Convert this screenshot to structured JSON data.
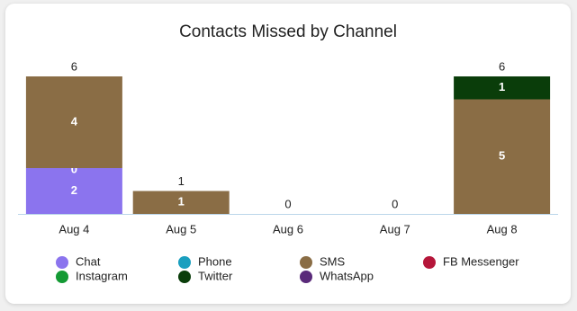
{
  "chart_data": {
    "type": "stacked_bar",
    "title": "Contacts Missed by Channel",
    "categories": [
      "Aug 4",
      "Aug 5",
      "Aug 6",
      "Aug 7",
      "Aug 8"
    ],
    "series": [
      {
        "name": "Chat",
        "color": "#8b74ee",
        "values": [
          2,
          null,
          null,
          null,
          0
        ]
      },
      {
        "name": "Phone",
        "color": "#1a9fbf",
        "values": [
          0,
          null,
          null,
          null,
          null
        ]
      },
      {
        "name": "SMS",
        "color": "#8a6d45",
        "values": [
          4,
          1,
          null,
          null,
          5
        ]
      },
      {
        "name": "FB Messenger",
        "color": "#b5163a",
        "values": [
          null,
          null,
          null,
          null,
          null
        ]
      },
      {
        "name": "Instagram",
        "color": "#149a34",
        "values": [
          null,
          null,
          null,
          null,
          null
        ]
      },
      {
        "name": "Twitter",
        "color": "#0a3d0a",
        "values": [
          null,
          null,
          null,
          null,
          1
        ]
      },
      {
        "name": "WhatsApp",
        "color": "#5a2a7a",
        "values": [
          null,
          null,
          null,
          null,
          null
        ]
      }
    ],
    "totals": [
      6,
      1,
      0,
      0,
      6
    ],
    "ylim": [
      0,
      6
    ]
  }
}
